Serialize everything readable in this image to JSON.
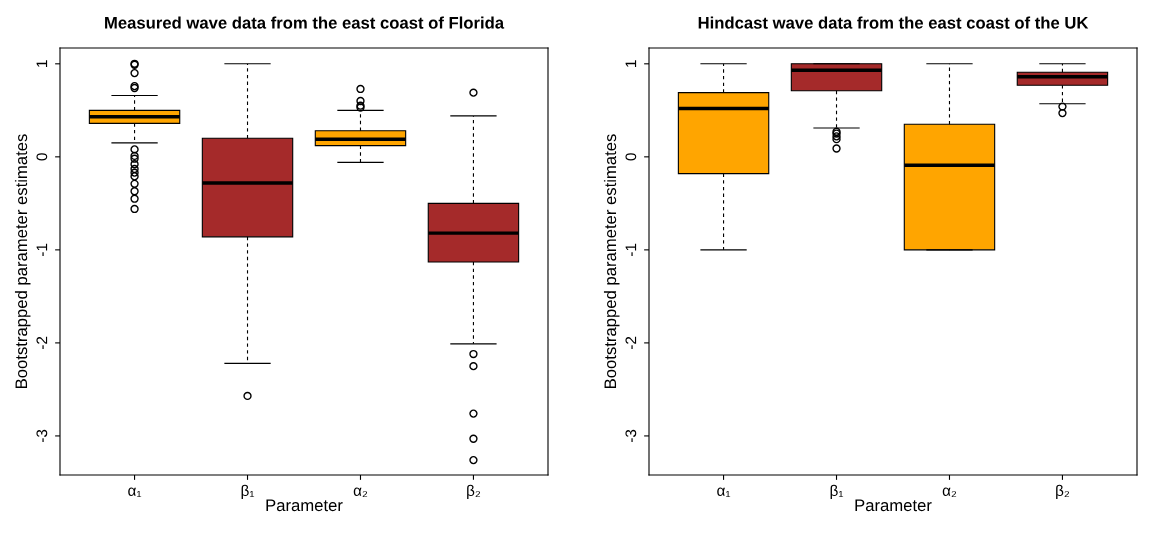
{
  "chart_data": [
    {
      "type": "box",
      "title": "Measured wave data from the east coast of Florida",
      "xlabel": "Parameter",
      "ylabel": "Bootstrapped parameter estimates",
      "categories": [
        "α₁",
        "β₁",
        "α₂",
        "β₂"
      ],
      "colors": [
        "#ffa500",
        "#a52a2a",
        "#ffa500",
        "#a52a2a"
      ],
      "ylim": [
        -3.42,
        1.17
      ],
      "yticks": [
        -3,
        -2,
        -1,
        0,
        1
      ],
      "grid": false,
      "legend": false,
      "boxes": [
        {
          "low": 0.15,
          "q1": 0.36,
          "median": 0.43,
          "q3": 0.5,
          "high": 0.66,
          "outliers": [
            1.0,
            0.99,
            0.9,
            0.76,
            0.74,
            0.08,
            0.01,
            -0.02,
            -0.08,
            -0.13,
            -0.17,
            -0.21,
            -0.29,
            -0.37,
            -0.45,
            -0.56
          ]
        },
        {
          "low": -2.22,
          "q1": -0.86,
          "median": -0.28,
          "q3": 0.2,
          "high": 1.0,
          "outliers": [
            -2.57
          ]
        },
        {
          "low": -0.06,
          "q1": 0.12,
          "median": 0.19,
          "q3": 0.28,
          "high": 0.5,
          "outliers": [
            0.73,
            0.6,
            0.55,
            0.53
          ]
        },
        {
          "low": -2.01,
          "q1": -1.13,
          "median": -0.82,
          "q3": -0.5,
          "high": 0.44,
          "outliers": [
            0.69,
            -2.12,
            -2.25,
            -2.76,
            -3.03,
            -3.26
          ]
        }
      ]
    },
    {
      "type": "box",
      "title": "Hindcast wave data from the east coast of the UK",
      "xlabel": "Parameter",
      "ylabel": "Bootstrapped parameter estimates",
      "categories": [
        "α₁",
        "β₁",
        "α₂",
        "β₂"
      ],
      "colors": [
        "#ffa500",
        "#a52a2a",
        "#ffa500",
        "#a52a2a"
      ],
      "ylim": [
        -3.42,
        1.17
      ],
      "yticks": [
        -3,
        -2,
        -1,
        0,
        1
      ],
      "grid": false,
      "legend": false,
      "boxes": [
        {
          "low": -1.0,
          "q1": -0.18,
          "median": 0.52,
          "q3": 0.69,
          "high": 1.0
        },
        {
          "low": 0.31,
          "q1": 0.71,
          "median": 0.93,
          "q3": 1.0,
          "high": 1.0,
          "outliers": [
            0.27,
            0.25,
            0.22,
            0.19,
            0.09
          ]
        },
        {
          "low": -1.0,
          "q1": -1.0,
          "median": -0.09,
          "q3": 0.35,
          "high": 1.0
        },
        {
          "low": 0.57,
          "q1": 0.77,
          "median": 0.86,
          "q3": 0.91,
          "high": 1.0,
          "outliers": [
            0.54,
            0.47
          ]
        }
      ]
    }
  ]
}
